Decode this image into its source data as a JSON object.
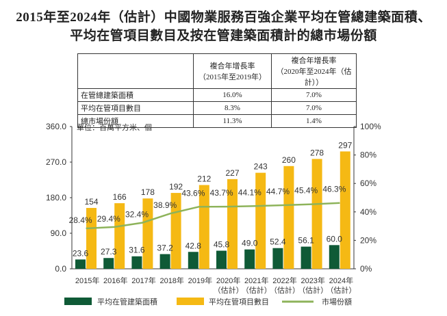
{
  "title_line1": "2015年至2024年（估計）中國物業服務百強企業平均在管總建築面積、",
  "title_line2": "平均在管項目數目及按在管建築面積計的總市場份額",
  "table": {
    "headers": [
      [
        "",
        ""
      ],
      [
        "複合年增長率",
        "（2015年至2019年）"
      ],
      [
        "複合年增長率",
        "（2020年至2024年（估計））"
      ]
    ],
    "rows": [
      [
        "在管總建築面積",
        "16.0%",
        "7.0%"
      ],
      [
        "平均在管項目數目",
        "8.3%",
        "7.0%"
      ],
      [
        "總市場份額",
        "11.3%",
        "1.4%"
      ]
    ]
  },
  "chart_data": {
    "type": "bar",
    "unit_label": "單位：百萬平方米、個",
    "categories": [
      [
        "2015年"
      ],
      [
        "2016年"
      ],
      [
        "2017年"
      ],
      [
        "2018年"
      ],
      [
        "2019年"
      ],
      [
        "2020年",
        "（估計）"
      ],
      [
        "2021年",
        "（估計）"
      ],
      [
        "2022年",
        "（估計）"
      ],
      [
        "2023年",
        "（估計）"
      ],
      [
        "2024年",
        "（估計）"
      ]
    ],
    "series": [
      {
        "name": "平均在管建築面積",
        "type": "bar",
        "axis": "left",
        "color": "#0f5a36",
        "values": [
          23.6,
          27.3,
          31.6,
          37.2,
          42.8,
          45.8,
          49.0,
          52.4,
          56.1,
          60.0
        ],
        "labels": [
          "23.6",
          "27.3",
          "31.6",
          "37.2",
          "42.8",
          "45.8",
          "49.0",
          "52.4",
          "56.1",
          "60.0"
        ]
      },
      {
        "name": "平均在管項目數目",
        "type": "bar",
        "axis": "left",
        "color": "#f5b914",
        "values": [
          154,
          166,
          178,
          192,
          212,
          227,
          243,
          260,
          278,
          297
        ],
        "labels": [
          "154",
          "166",
          "178",
          "192",
          "212",
          "227",
          "243",
          "260",
          "278",
          "297"
        ]
      },
      {
        "name": "市場份額",
        "type": "line",
        "axis": "right",
        "color": "#8db35a",
        "values": [
          28.4,
          29.4,
          32.4,
          38.9,
          43.6,
          43.7,
          44.1,
          44.7,
          45.4,
          46.3
        ],
        "labels": [
          "28.4%",
          "29.4%",
          "32.4%",
          "38.9%",
          "43.6%",
          "43.7%",
          "44.1%",
          "44.7%",
          "45.4%",
          "46.3%"
        ]
      }
    ],
    "left_axis": {
      "ylim": [
        0,
        360
      ],
      "ticks": [
        "0.0",
        "90.0",
        "180.0",
        "270.0",
        "360.0"
      ]
    },
    "right_axis": {
      "ylim": [
        0,
        100
      ],
      "ticks": [
        "0%",
        "20%",
        "40%",
        "60%",
        "80%",
        "100%"
      ]
    },
    "grid": false,
    "legend": "bottom"
  }
}
